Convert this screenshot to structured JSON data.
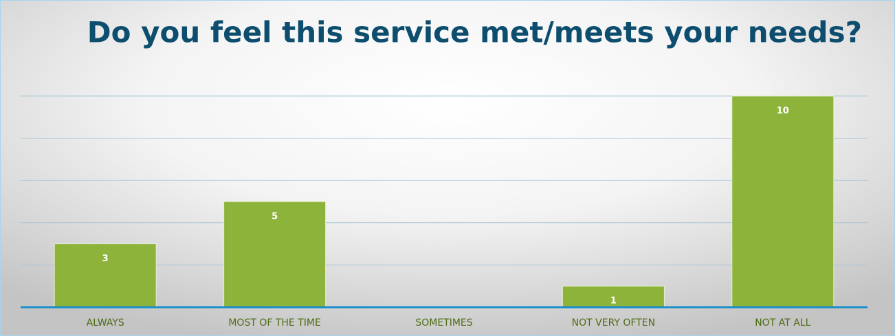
{
  "chart_data": {
    "type": "bar",
    "title": "Do you feel this service met/meets your needs?",
    "categories": [
      "ALWAYS",
      "MOST OF THE TIME",
      "SOMETIMES",
      "NOT VERY OFTEN",
      "NOT AT ALL"
    ],
    "values": [
      3,
      5,
      0,
      1,
      10
    ],
    "color": "#8db33a",
    "ylim": [
      0,
      10
    ],
    "yticks": [
      0,
      2,
      4,
      6,
      8,
      10
    ],
    "grid": true
  }
}
